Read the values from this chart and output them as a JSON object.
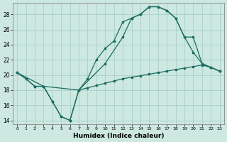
{
  "xlabel": "Humidex (Indice chaleur)",
  "bg_color": "#cce8e0",
  "grid_color": "#aacfc8",
  "line_color": "#1a6b60",
  "xlim": [
    -0.5,
    23.5
  ],
  "ylim": [
    13.5,
    29.5
  ],
  "xticks": [
    0,
    1,
    2,
    3,
    4,
    5,
    6,
    7,
    8,
    9,
    10,
    11,
    12,
    13,
    14,
    15,
    16,
    17,
    18,
    19,
    20,
    21,
    22,
    23
  ],
  "yticks": [
    14,
    16,
    18,
    20,
    22,
    24,
    26,
    28
  ],
  "curve1_x": [
    0,
    1,
    2,
    3,
    4,
    5,
    6,
    7,
    8,
    9,
    10,
    11,
    12,
    13,
    14,
    15,
    16,
    17,
    18,
    19,
    20,
    21,
    22,
    23
  ],
  "curve1_y": [
    20.3,
    19.5,
    18.5,
    18.5,
    16.5,
    14.5,
    14.0,
    18.0,
    19.5,
    22.0,
    23.5,
    24.5,
    27.0,
    27.5,
    28.0,
    29.0,
    29.0,
    28.5,
    27.5,
    25.0,
    23.0,
    21.5,
    21.0,
    20.5
  ],
  "curve2_x": [
    0,
    3,
    7,
    10,
    12,
    13,
    14,
    15,
    16,
    17,
    18,
    19,
    20,
    21,
    22,
    23
  ],
  "curve2_y": [
    20.3,
    18.5,
    18.0,
    21.5,
    25.0,
    27.5,
    28.0,
    29.0,
    29.0,
    28.5,
    27.5,
    25.0,
    25.0,
    21.5,
    21.0,
    20.5
  ],
  "curve3_x": [
    0,
    1,
    2,
    3,
    4,
    5,
    6,
    7,
    8,
    9,
    10,
    11,
    12,
    13,
    14,
    15,
    16,
    17,
    18,
    19,
    20,
    21,
    22,
    23
  ],
  "curve3_y": [
    20.3,
    19.5,
    18.5,
    18.5,
    16.5,
    14.5,
    14.0,
    18.0,
    18.3,
    18.6,
    18.9,
    19.2,
    19.5,
    19.7,
    19.9,
    20.1,
    20.3,
    20.5,
    20.7,
    20.9,
    21.1,
    21.3,
    21.0,
    20.5
  ]
}
